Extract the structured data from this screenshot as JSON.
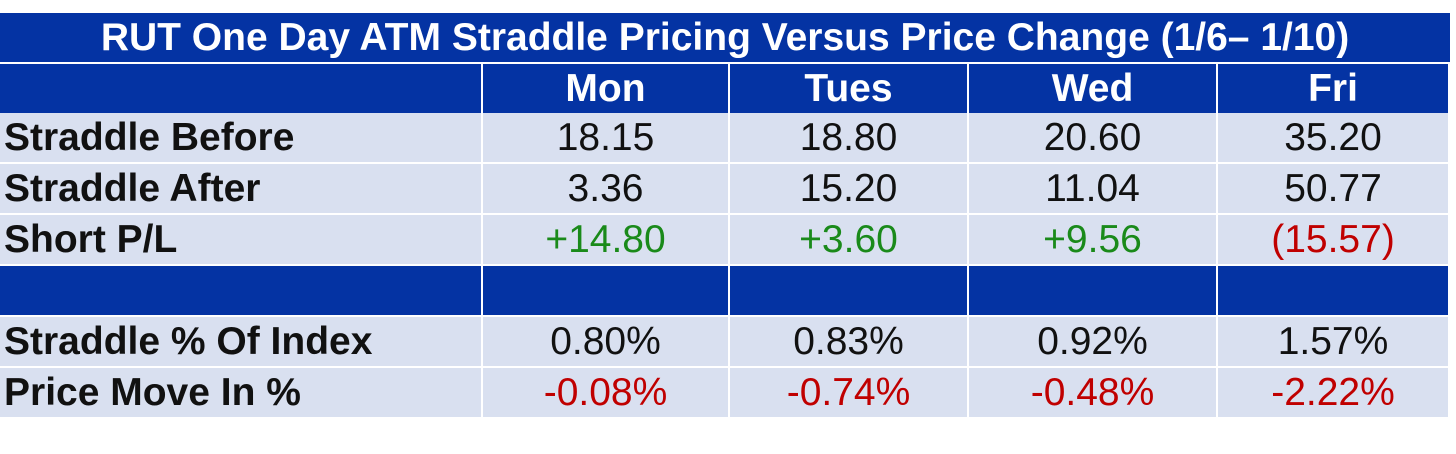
{
  "title": "RUT One Day ATM Straddle Pricing Versus Price Change (1/6– 1/10)",
  "columns": [
    "",
    "Mon",
    "Tues",
    "Wed",
    "Fri"
  ],
  "rows": [
    {
      "label": "Straddle Before",
      "values": [
        "18.15",
        "18.80",
        "20.60",
        "35.20"
      ]
    },
    {
      "label": "Straddle After",
      "values": [
        "3.36",
        "15.20",
        "11.04",
        "50.77"
      ]
    },
    {
      "label": "Short P/L",
      "values": [
        "+14.80",
        "+3.60",
        "+9.56",
        "(15.57)"
      ]
    },
    {
      "label": "Straddle % Of Index",
      "values": [
        "0.80%",
        "0.83%",
        "0.92%",
        "1.57%"
      ]
    },
    {
      "label": "Price Move In %",
      "values": [
        "-0.08%",
        "-0.74%",
        "-0.48%",
        "-2.22%"
      ]
    }
  ],
  "colors": {
    "header_bg": "#0433a3",
    "row_bg": "#d9e0f0",
    "positive": "#1a8a1a",
    "negative": "#c00000"
  }
}
